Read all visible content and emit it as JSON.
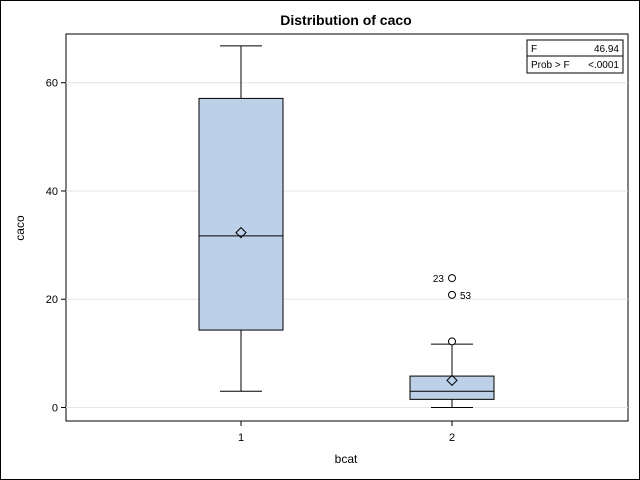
{
  "chart_data": {
    "type": "boxplot",
    "title": "Distribution of caco",
    "xlabel": "bcat",
    "ylabel": "caco",
    "ylim": [
      -2.5,
      69
    ],
    "yticks": [
      0,
      20,
      40,
      60
    ],
    "grid": true,
    "colors": {
      "box_fill": "#bcd0e8",
      "stroke": "#000000",
      "grid": "#e6e6e6"
    },
    "categories": [
      "1",
      "2"
    ],
    "boxes": [
      {
        "category": "1",
        "min": 3.0,
        "q1": 14.3,
        "median": 31.7,
        "q3": 57.1,
        "max": 66.8,
        "mean": 32.3,
        "outliers": []
      },
      {
        "category": "2",
        "min": 0.0,
        "q1": 1.5,
        "median": 3.0,
        "q3": 5.8,
        "max": 11.7,
        "mean": 5.0,
        "outliers": [
          {
            "value": 12.2,
            "label": ""
          },
          {
            "value": 20.8,
            "label": "53"
          },
          {
            "value": 23.9,
            "label": "23"
          }
        ]
      }
    ],
    "stats": [
      {
        "label": "F",
        "value": "46.94"
      },
      {
        "label": "Prob > F",
        "value": "<.0001"
      }
    ]
  }
}
